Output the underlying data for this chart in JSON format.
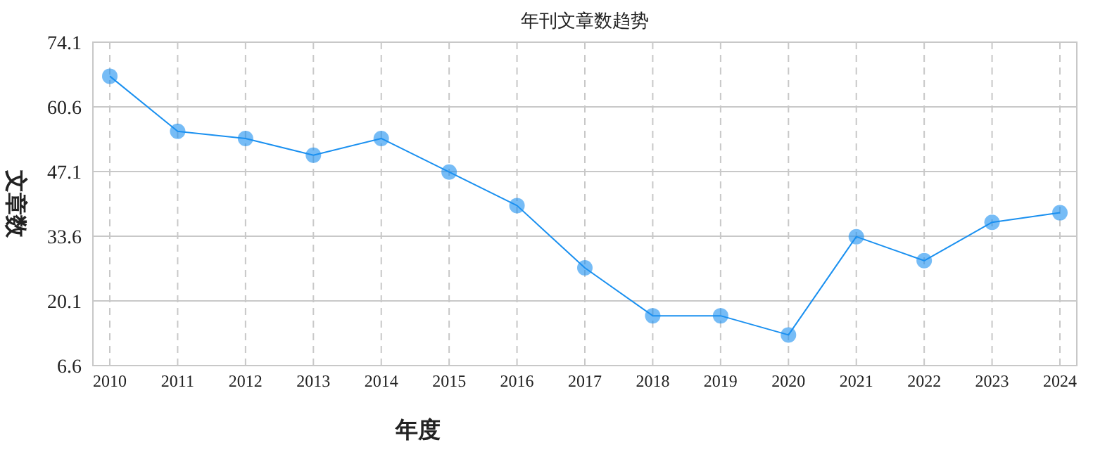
{
  "chart_data": {
    "type": "line",
    "title": "年刊文章数趋势",
    "xlabel": "年度",
    "ylabel": "文章数",
    "categories": [
      "2010",
      "2011",
      "2012",
      "2013",
      "2014",
      "2015",
      "2016",
      "2017",
      "2018",
      "2019",
      "2020",
      "2021",
      "2022",
      "2023",
      "2024"
    ],
    "series": [
      {
        "color": "#1a90f0",
        "values": [
          67,
          55.5,
          54,
          50.5,
          54,
          47,
          40,
          27,
          17,
          17,
          13,
          33.5,
          28.5,
          36.5,
          38.5
        ]
      }
    ],
    "ylim": [
      6.6,
      74.1
    ],
    "yticks": [
      6.6,
      20.1,
      33.6,
      47.1,
      60.6,
      74.1
    ],
    "grid": true,
    "marker": "circle",
    "line_style": "solid"
  }
}
